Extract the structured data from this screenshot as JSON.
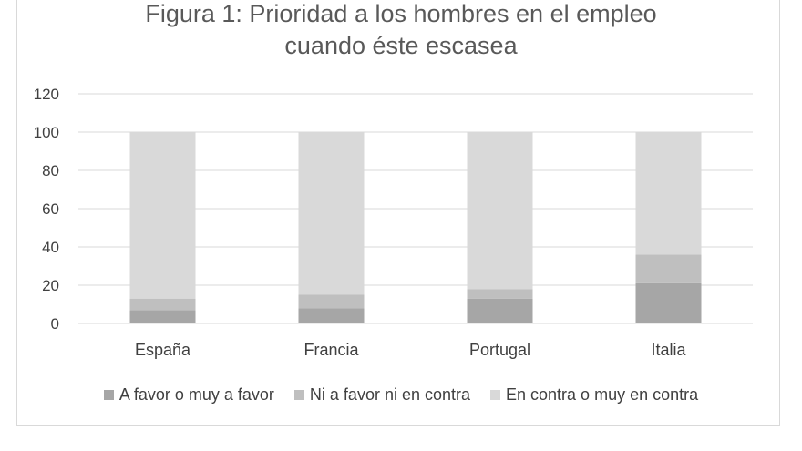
{
  "chart_data": {
    "type": "bar",
    "stacked": true,
    "title_line1": "Figura 1: Prioridad a los hombres en el empleo",
    "title_line2": "cuando éste escasea",
    "categories": [
      "España",
      "Francia",
      "Portugal",
      "Italia"
    ],
    "series": [
      {
        "name": "A favor o muy a favor",
        "values": [
          7,
          8,
          13,
          21
        ],
        "color": "#a6a6a6"
      },
      {
        "name": "Ni a favor ni en contra",
        "values": [
          6,
          7,
          5,
          15
        ],
        "color": "#bfbfbf"
      },
      {
        "name": "En contra o muy en contra",
        "values": [
          87,
          85,
          82,
          64
        ],
        "color": "#d9d9d9"
      }
    ],
    "ylim": [
      0,
      120
    ],
    "yticks": [
      0,
      20,
      40,
      60,
      80,
      100,
      120
    ],
    "grid": true,
    "legend_position": "bottom",
    "xlabel": "",
    "ylabel": ""
  }
}
